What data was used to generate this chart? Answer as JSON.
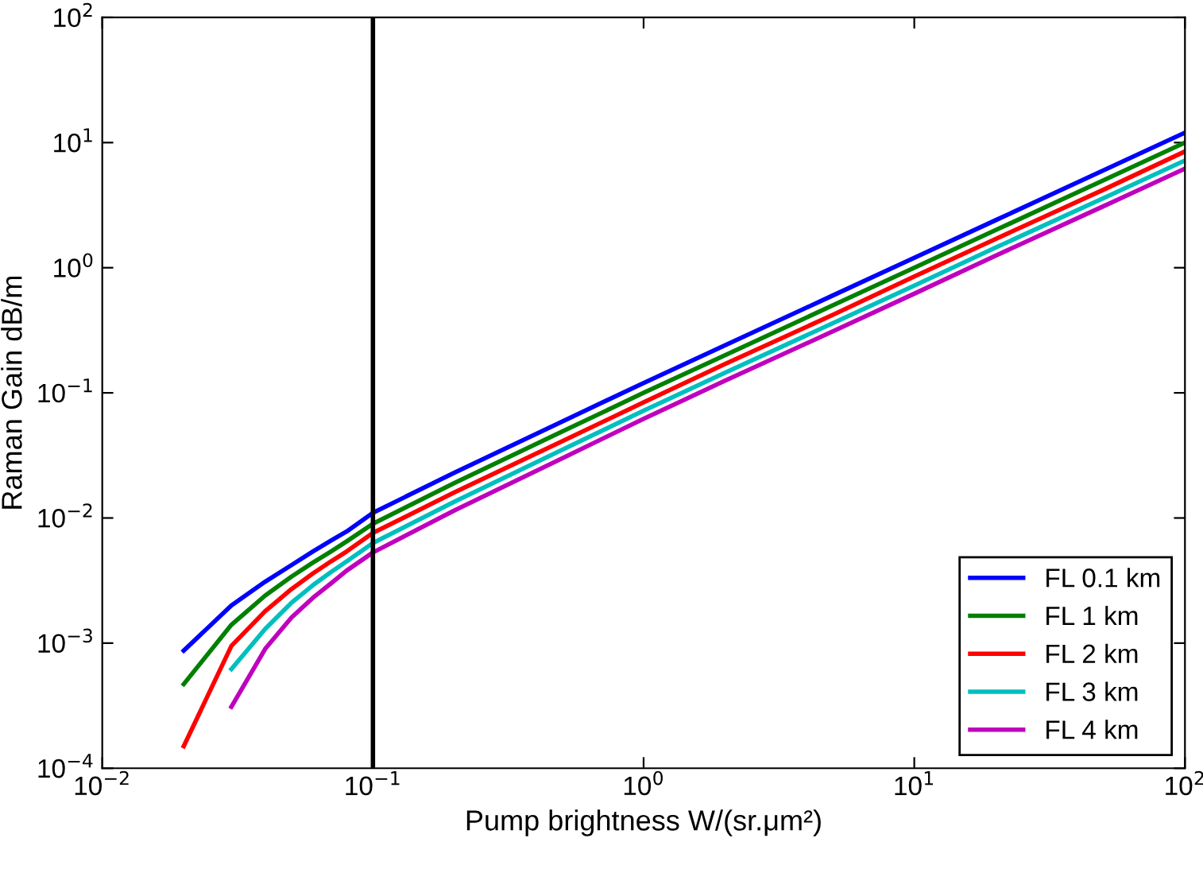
{
  "chart_data": {
    "type": "line",
    "xlabel": "Pump brightness W/(sr.μm²)",
    "ylabel": "Raman Gain dB/m",
    "log": "xy",
    "grid": false,
    "legend": "bottom right",
    "line_style": "solid",
    "marker": "none",
    "xlim": [
      0.01,
      100
    ],
    "ylim": [
      0.0001,
      100
    ],
    "xticks": [
      {
        "value": 0.01,
        "label": "10$^{−2}$"
      },
      {
        "value": 0.1,
        "label": "10$^{−1}$"
      },
      {
        "value": 1,
        "label": "10$^{0}$"
      },
      {
        "value": 10,
        "label": "10$^{1}$"
      },
      {
        "value": 100,
        "label": "10$^{2}$"
      }
    ],
    "yticks": [
      {
        "value": 0.0001,
        "label": "10$^{−4}$"
      },
      {
        "value": 0.001,
        "label": "10$^{−3}$"
      },
      {
        "value": 0.01,
        "label": "10$^{−2}$"
      },
      {
        "value": 0.1,
        "label": "10$^{−1}$"
      },
      {
        "value": 1,
        "label": "10$^{0}$"
      },
      {
        "value": 10,
        "label": "10$^{1}$"
      },
      {
        "value": 100,
        "label": "10$^{2}$"
      }
    ],
    "ref_lines": [
      {
        "axis": "x",
        "value": 0.1,
        "color": "#000000"
      }
    ],
    "series": [
      {
        "name": "FL 0.1 km",
        "color": "#0000ff",
        "x": [
          0.02,
          0.03,
          0.04,
          0.05,
          0.06,
          0.07,
          0.08,
          0.1,
          0.2,
          0.5,
          1,
          2,
          5,
          10,
          20,
          50,
          100
        ],
        "values": [
          0.00087,
          0.002,
          0.0031,
          0.0042,
          0.0054,
          0.0066,
          0.0078,
          0.011,
          0.023,
          0.059,
          0.12,
          0.24,
          0.6,
          1.2,
          2.4,
          6,
          12
        ]
      },
      {
        "name": "FL 1 km",
        "color": "#008000",
        "x": [
          0.02,
          0.03,
          0.04,
          0.05,
          0.06,
          0.07,
          0.08,
          0.1,
          0.2,
          0.5,
          1,
          2,
          5,
          10,
          20,
          50,
          100
        ],
        "values": [
          0.00047,
          0.0014,
          0.0024,
          0.0034,
          0.0044,
          0.0054,
          0.0065,
          0.009,
          0.019,
          0.049,
          0.1,
          0.2,
          0.5,
          1.0,
          2.0,
          5,
          10
        ]
      },
      {
        "name": "FL 2 km",
        "color": "#ff0000",
        "x": [
          0.02,
          0.03,
          0.04,
          0.05,
          0.06,
          0.07,
          0.08,
          0.1,
          0.2,
          0.5,
          1,
          2,
          5,
          10,
          20,
          50,
          100
        ],
        "values": [
          0.00015,
          0.00095,
          0.0018,
          0.0027,
          0.0036,
          0.0045,
          0.0054,
          0.0076,
          0.016,
          0.041,
          0.084,
          0.17,
          0.42,
          0.85,
          1.7,
          4.2,
          8.5
        ]
      },
      {
        "name": "FL 3 km",
        "color": "#00bfbf",
        "x": [
          0.03,
          0.04,
          0.05,
          0.06,
          0.07,
          0.08,
          0.1,
          0.2,
          0.5,
          1,
          2,
          5,
          10,
          20,
          50,
          100
        ],
        "values": [
          0.00062,
          0.0013,
          0.0021,
          0.0029,
          0.0037,
          0.0045,
          0.0063,
          0.0135,
          0.035,
          0.072,
          0.145,
          0.36,
          0.72,
          1.45,
          3.6,
          7.2
        ]
      },
      {
        "name": "FL 4 km",
        "color": "#bf00bf",
        "x": [
          0.03,
          0.04,
          0.05,
          0.06,
          0.07,
          0.08,
          0.1,
          0.2,
          0.5,
          1,
          2,
          5,
          10,
          20,
          50,
          100
        ],
        "values": [
          0.00031,
          0.0009,
          0.0016,
          0.0023,
          0.003,
          0.0038,
          0.0053,
          0.0115,
          0.03,
          0.062,
          0.125,
          0.31,
          0.62,
          1.25,
          3.1,
          6.2
        ]
      }
    ]
  }
}
